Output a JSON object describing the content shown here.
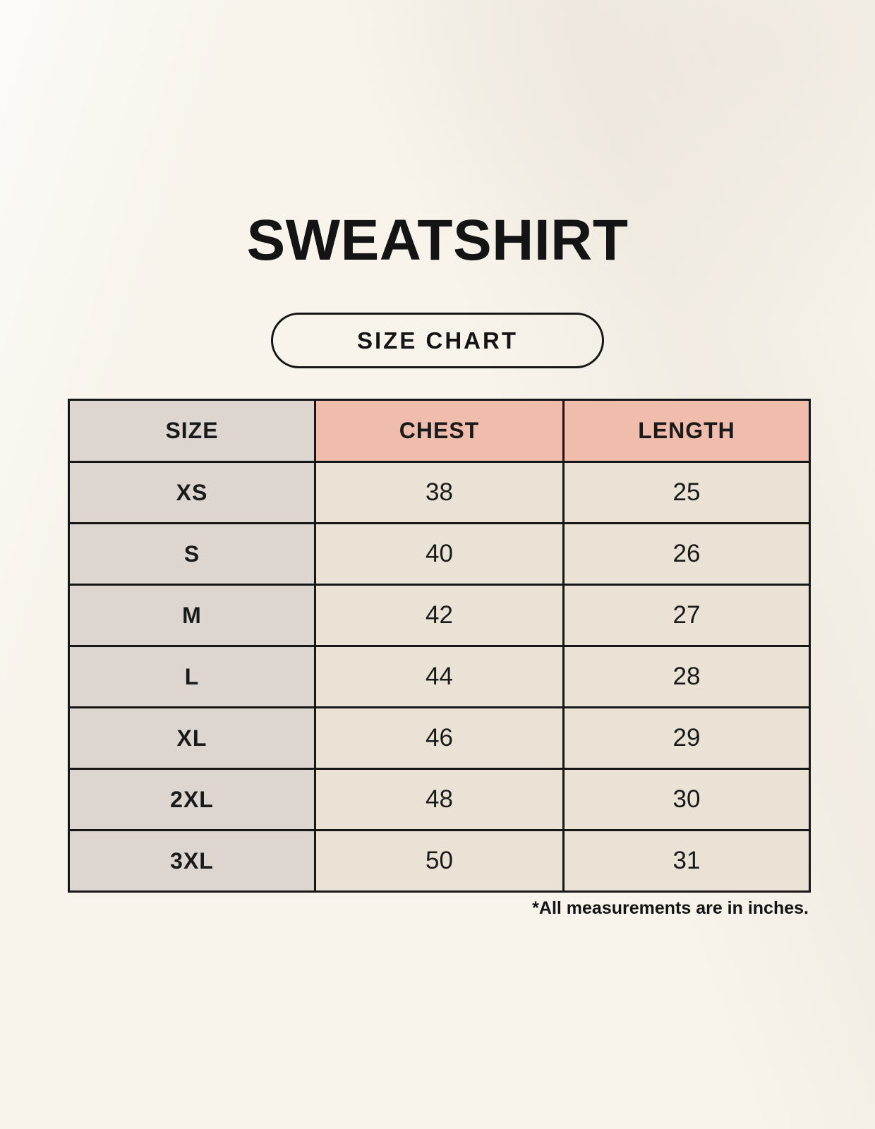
{
  "header": {
    "title": "SWEATSHIRT",
    "badge_label": "SIZE CHART"
  },
  "table": {
    "columns": [
      "SIZE",
      "CHEST",
      "LENGTH"
    ],
    "rows": [
      {
        "size": "XS",
        "chest": "38",
        "length": "25"
      },
      {
        "size": "S",
        "chest": "40",
        "length": "26"
      },
      {
        "size": "M",
        "chest": "42",
        "length": "27"
      },
      {
        "size": "L",
        "chest": "44",
        "length": "28"
      },
      {
        "size": "XL",
        "chest": "46",
        "length": "29"
      },
      {
        "size": "2XL",
        "chest": "48",
        "length": "30"
      },
      {
        "size": "3XL",
        "chest": "50",
        "length": "31"
      }
    ]
  },
  "footnote": "*All measurements are in inches.",
  "colors": {
    "background": "#f8f4ec",
    "header_accent": "#f0bcab",
    "size_column": "#ddd5cf",
    "cell": "#e9e2d5",
    "border": "#161616",
    "text": "#1a1a1a"
  },
  "chart_data": {
    "type": "table",
    "title": "SWEATSHIRT",
    "subtitle": "SIZE CHART",
    "columns": [
      "SIZE",
      "CHEST",
      "LENGTH"
    ],
    "rows": [
      [
        "XS",
        38,
        25
      ],
      [
        "S",
        40,
        26
      ],
      [
        "M",
        42,
        27
      ],
      [
        "L",
        44,
        28
      ],
      [
        "XL",
        46,
        29
      ],
      [
        "2XL",
        48,
        30
      ],
      [
        "3XL",
        50,
        31
      ]
    ],
    "units": "inches",
    "note": "*All measurements are in inches."
  }
}
